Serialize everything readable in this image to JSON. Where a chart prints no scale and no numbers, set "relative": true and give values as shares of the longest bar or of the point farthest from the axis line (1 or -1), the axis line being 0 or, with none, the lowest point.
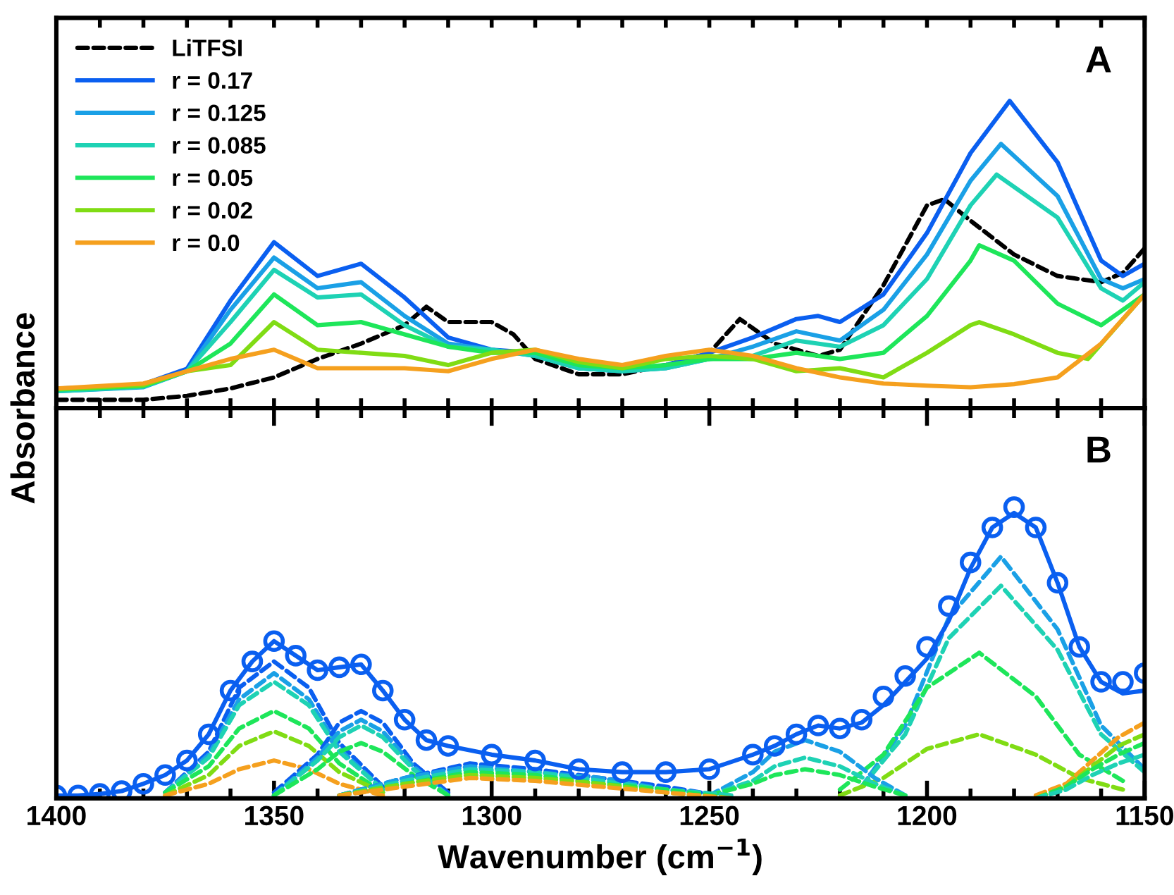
{
  "chart_data": [
    {
      "type": "line",
      "relative": true,
      "xlim": [
        1400,
        1150
      ],
      "xticks": [
        {
          "value": 1400,
          "label": null
        },
        {
          "value": 1390,
          "label": null
        },
        {
          "value": 1380,
          "label": null
        },
        {
          "value": 1370,
          "label": null
        },
        {
          "value": 1360,
          "label": null
        },
        {
          "value": 1350,
          "label": null
        },
        {
          "value": 1340,
          "label": null
        },
        {
          "value": 1330,
          "label": null
        },
        {
          "value": 1320,
          "label": null
        },
        {
          "value": 1310,
          "label": null
        },
        {
          "value": 1300,
          "label": null
        },
        {
          "value": 1290,
          "label": null
        },
        {
          "value": 1280,
          "label": null
        },
        {
          "value": 1270,
          "label": null
        },
        {
          "value": 1260,
          "label": null
        },
        {
          "value": 1250,
          "label": null
        },
        {
          "value": 1240,
          "label": null
        },
        {
          "value": 1230,
          "label": null
        },
        {
          "value": 1220,
          "label": null
        },
        {
          "value": 1210,
          "label": null
        },
        {
          "value": 1200,
          "label": null
        },
        {
          "value": 1190,
          "label": null
        },
        {
          "value": 1180,
          "label": null
        },
        {
          "value": 1170,
          "label": null
        },
        {
          "value": 1160,
          "label": null
        },
        {
          "value": 1150,
          "label": null
        }
      ],
      "tick_labels": false,
      "legend": "top left",
      "grid": false,
      "ylabel": "Absorbance",
      "annotations": [
        "A"
      ],
      "series": [
        {
          "name": "LiTFSI",
          "color": "#000000",
          "line_style": "dashed",
          "x": [
            1400,
            1380,
            1370,
            1360,
            1350,
            1340,
            1330,
            1320,
            1315,
            1310,
            1300,
            1295,
            1290,
            1280,
            1270,
            1260,
            1250,
            1243,
            1235,
            1225,
            1220,
            1210,
            1200,
            1196,
            1190,
            1180,
            1170,
            1160,
            1155,
            1150
          ],
          "values": [
            0.027,
            0.027,
            0.04,
            0.064,
            0.1,
            0.16,
            0.21,
            0.27,
            0.33,
            0.28,
            0.28,
            0.24,
            0.16,
            0.11,
            0.11,
            0.14,
            0.18,
            0.29,
            0.21,
            0.17,
            0.19,
            0.4,
            0.66,
            0.68,
            0.61,
            0.5,
            0.43,
            0.41,
            0.44,
            0.52
          ]
        },
        {
          "name": "r = 0.17",
          "color": "#0a5ff0",
          "line_style": "solid",
          "x": [
            1400,
            1390,
            1380,
            1370,
            1360,
            1350,
            1340,
            1330,
            1320,
            1310,
            1300,
            1290,
            1280,
            1270,
            1260,
            1250,
            1240,
            1230,
            1225,
            1220,
            1210,
            1200,
            1190,
            1181,
            1170,
            1160,
            1155,
            1150
          ],
          "values": [
            0.064,
            0.068,
            0.078,
            0.128,
            0.35,
            0.54,
            0.43,
            0.47,
            0.36,
            0.23,
            0.19,
            0.18,
            0.13,
            0.12,
            0.14,
            0.18,
            0.23,
            0.29,
            0.3,
            0.28,
            0.37,
            0.57,
            0.83,
            1.0,
            0.8,
            0.48,
            0.43,
            0.47
          ]
        },
        {
          "name": "r = 0.125",
          "color": "#1aa0e6",
          "line_style": "solid",
          "x": [
            1400,
            1380,
            1370,
            1360,
            1350,
            1340,
            1330,
            1320,
            1310,
            1300,
            1290,
            1280,
            1270,
            1260,
            1250,
            1240,
            1230,
            1220,
            1210,
            1200,
            1190,
            1183,
            1170,
            1160,
            1155,
            1150
          ],
          "values": [
            0.055,
            0.068,
            0.12,
            0.32,
            0.49,
            0.39,
            0.41,
            0.3,
            0.21,
            0.19,
            0.17,
            0.13,
            0.12,
            0.13,
            0.16,
            0.2,
            0.25,
            0.22,
            0.32,
            0.5,
            0.74,
            0.86,
            0.69,
            0.42,
            0.39,
            0.42
          ]
        },
        {
          "name": "r = 0.085",
          "color": "#1ed2b4",
          "line_style": "solid",
          "x": [
            1400,
            1380,
            1370,
            1360,
            1350,
            1340,
            1330,
            1320,
            1310,
            1300,
            1290,
            1280,
            1270,
            1260,
            1250,
            1240,
            1230,
            1220,
            1210,
            1200,
            1190,
            1184,
            1170,
            1160,
            1155,
            1150
          ],
          "values": [
            0.055,
            0.07,
            0.12,
            0.28,
            0.45,
            0.36,
            0.37,
            0.27,
            0.2,
            0.19,
            0.17,
            0.13,
            0.12,
            0.13,
            0.16,
            0.17,
            0.22,
            0.2,
            0.27,
            0.42,
            0.66,
            0.76,
            0.62,
            0.39,
            0.35,
            0.41
          ]
        },
        {
          "name": "r = 0.05",
          "color": "#1ee65a",
          "line_style": "solid",
          "x": [
            1400,
            1380,
            1370,
            1360,
            1350,
            1340,
            1330,
            1320,
            1310,
            1300,
            1290,
            1280,
            1270,
            1260,
            1250,
            1240,
            1230,
            1220,
            1210,
            1200,
            1190,
            1188,
            1180,
            1170,
            1160,
            1150
          ],
          "values": [
            0.06,
            0.072,
            0.12,
            0.21,
            0.37,
            0.27,
            0.28,
            0.24,
            0.2,
            0.18,
            0.18,
            0.14,
            0.13,
            0.14,
            0.16,
            0.16,
            0.18,
            0.16,
            0.18,
            0.3,
            0.48,
            0.53,
            0.48,
            0.34,
            0.27,
            0.37
          ]
        },
        {
          "name": "r = 0.02",
          "color": "#80dc14",
          "line_style": "solid",
          "x": [
            1400,
            1380,
            1370,
            1360,
            1350,
            1340,
            1330,
            1320,
            1310,
            1300,
            1290,
            1280,
            1270,
            1260,
            1250,
            1240,
            1230,
            1220,
            1210,
            1200,
            1190,
            1188,
            1180,
            1170,
            1163,
            1150
          ],
          "values": [
            0.062,
            0.075,
            0.12,
            0.14,
            0.28,
            0.19,
            0.18,
            0.17,
            0.14,
            0.18,
            0.19,
            0.15,
            0.13,
            0.16,
            0.17,
            0.16,
            0.12,
            0.13,
            0.1,
            0.18,
            0.27,
            0.28,
            0.24,
            0.18,
            0.16,
            0.37
          ]
        },
        {
          "name": "r = 0.0",
          "color": "#f5a01e",
          "line_style": "solid",
          "x": [
            1400,
            1380,
            1370,
            1360,
            1350,
            1340,
            1330,
            1320,
            1310,
            1300,
            1290,
            1280,
            1270,
            1260,
            1250,
            1240,
            1230,
            1220,
            1210,
            1200,
            1190,
            1180,
            1170,
            1160,
            1150
          ],
          "values": [
            0.064,
            0.08,
            0.12,
            0.16,
            0.19,
            0.13,
            0.13,
            0.13,
            0.12,
            0.16,
            0.19,
            0.16,
            0.14,
            0.17,
            0.19,
            0.17,
            0.13,
            0.1,
            0.08,
            0.073,
            0.068,
            0.078,
            0.1,
            0.21,
            0.37
          ]
        }
      ]
    },
    {
      "type": "line",
      "relative": true,
      "xlim": [
        1400,
        1150
      ],
      "xticks": [
        1400,
        {
          "value": 1390,
          "label": null
        },
        {
          "value": 1380,
          "label": null
        },
        {
          "value": 1370,
          "label": null
        },
        {
          "value": 1360,
          "label": null
        },
        1350,
        {
          "value": 1340,
          "label": null
        },
        {
          "value": 1330,
          "label": null
        },
        {
          "value": 1320,
          "label": null
        },
        {
          "value": 1310,
          "label": null
        },
        1300,
        {
          "value": 1290,
          "label": null
        },
        {
          "value": 1280,
          "label": null
        },
        {
          "value": 1270,
          "label": null
        },
        {
          "value": 1260,
          "label": null
        },
        1250,
        {
          "value": 1240,
          "label": null
        },
        {
          "value": 1230,
          "label": null
        },
        {
          "value": 1220,
          "label": null
        },
        {
          "value": 1210,
          "label": null
        },
        1200,
        {
          "value": 1190,
          "label": null
        },
        {
          "value": 1180,
          "label": null
        },
        {
          "value": 1170,
          "label": null
        },
        {
          "value": 1160,
          "label": null
        },
        1150
      ],
      "tick_labels": "x",
      "grid": false,
      "xlabel": "Wavenumber (cm$^{−1}$)",
      "annotations": [
        "B"
      ],
      "series": [
        {
          "color": "#1aa0e6",
          "line_style": "dashed",
          "x": [
            1215,
            1205,
            1195,
            1183,
            1170,
            1160,
            1150
          ],
          "values": [
            0.04,
            0.25,
            0.62,
            0.83,
            0.58,
            0.25,
            0.1
          ]
        },
        {
          "color": "#1ed2b4",
          "line_style": "dashed",
          "x": [
            1215,
            1205,
            1195,
            1183,
            1170,
            1160,
            1150
          ],
          "values": [
            0.04,
            0.22,
            0.55,
            0.73,
            0.51,
            0.22,
            0.09
          ]
        },
        {
          "color": "#1ee65a",
          "line_style": "dashed",
          "x": [
            1220,
            1210,
            1200,
            1188,
            1175,
            1165,
            1155
          ],
          "values": [
            0.03,
            0.15,
            0.38,
            0.5,
            0.35,
            0.15,
            0.06
          ]
        },
        {
          "color": "#80dc14",
          "line_style": "dashed",
          "x": [
            1220,
            1210,
            1200,
            1188,
            1175,
            1165,
            1155
          ],
          "values": [
            0.01,
            0.07,
            0.17,
            0.22,
            0.15,
            0.07,
            0.03
          ]
        },
        {
          "color": "#0a5ff0",
          "line_style": "dashed",
          "x": [
            1375,
            1365,
            1358,
            1350,
            1342,
            1335,
            1325
          ],
          "values": [
            0.02,
            0.16,
            0.38,
            0.47,
            0.38,
            0.19,
            0.04
          ]
        },
        {
          "color": "#1aa0e6",
          "line_style": "dashed",
          "x": [
            1375,
            1365,
            1358,
            1350,
            1342,
            1335,
            1325
          ],
          "values": [
            0.02,
            0.15,
            0.34,
            0.43,
            0.34,
            0.17,
            0.03
          ]
        },
        {
          "color": "#1ed2b4",
          "line_style": "dashed",
          "x": [
            1375,
            1365,
            1358,
            1350,
            1342,
            1335,
            1325
          ],
          "values": [
            0.02,
            0.14,
            0.32,
            0.4,
            0.32,
            0.16,
            0.03
          ]
        },
        {
          "color": "#1ee65a",
          "line_style": "dashed",
          "x": [
            1375,
            1365,
            1358,
            1350,
            1342,
            1335,
            1325
          ],
          "values": [
            0.02,
            0.11,
            0.24,
            0.3,
            0.24,
            0.12,
            0.02
          ]
        },
        {
          "color": "#80dc14",
          "line_style": "dashed",
          "x": [
            1375,
            1365,
            1358,
            1350,
            1342,
            1335,
            1325
          ],
          "values": [
            0.01,
            0.08,
            0.18,
            0.23,
            0.18,
            0.09,
            0.02
          ]
        },
        {
          "color": "#f5a01e",
          "line_style": "dashed",
          "x": [
            1375,
            1365,
            1358,
            1350,
            1342,
            1335,
            1325
          ],
          "values": [
            0.01,
            0.05,
            0.1,
            0.13,
            0.1,
            0.05,
            0.01
          ]
        },
        {
          "color": "#0a5ff0",
          "line_style": "dashed",
          "x": [
            1350,
            1340,
            1335,
            1330,
            1325,
            1318,
            1310
          ],
          "values": [
            0.02,
            0.15,
            0.26,
            0.3,
            0.26,
            0.12,
            0.02
          ]
        },
        {
          "color": "#1aa0e6",
          "line_style": "dashed",
          "x": [
            1350,
            1340,
            1335,
            1330,
            1325,
            1318,
            1310
          ],
          "values": [
            0.01,
            0.14,
            0.23,
            0.27,
            0.23,
            0.11,
            0.01
          ]
        },
        {
          "color": "#1ed2b4",
          "line_style": "dashed",
          "x": [
            1350,
            1340,
            1335,
            1330,
            1325,
            1318,
            1310
          ],
          "values": [
            0.01,
            0.13,
            0.21,
            0.25,
            0.21,
            0.1,
            0.01
          ]
        },
        {
          "color": "#1ee65a",
          "line_style": "dashed",
          "x": [
            1350,
            1340,
            1335,
            1330,
            1325,
            1318,
            1310
          ],
          "values": [
            0.01,
            0.1,
            0.16,
            0.19,
            0.16,
            0.08,
            0.01
          ]
        },
        {
          "color": "#1aa0e6",
          "line_style": "dashed",
          "x": [
            1250,
            1240,
            1235,
            1228,
            1220,
            1212,
            1205
          ],
          "values": [
            0.01,
            0.09,
            0.16,
            0.2,
            0.16,
            0.07,
            0.01
          ]
        },
        {
          "color": "#1ed2b4",
          "line_style": "dashed",
          "x": [
            1250,
            1240,
            1235,
            1228,
            1220,
            1212,
            1205
          ],
          "values": [
            0.01,
            0.06,
            0.11,
            0.14,
            0.11,
            0.05,
            0.01
          ]
        },
        {
          "color": "#1ee65a",
          "line_style": "dashed",
          "x": [
            1250,
            1240,
            1235,
            1228,
            1220,
            1212,
            1205
          ],
          "values": [
            0.01,
            0.05,
            0.08,
            0.1,
            0.08,
            0.04,
            0.01
          ]
        },
        {
          "color": "#0a5ff0",
          "line_style": "dashed",
          "x": [
            1335,
            1320,
            1305,
            1290,
            1275,
            1260,
            1252
          ],
          "values": [
            0.01,
            0.07,
            0.12,
            0.1,
            0.07,
            0.04,
            0.02
          ]
        },
        {
          "color": "#1aa0e6",
          "line_style": "dashed",
          "x": [
            1335,
            1320,
            1305,
            1290,
            1275,
            1260,
            1245
          ],
          "values": [
            0.01,
            0.07,
            0.11,
            0.09,
            0.07,
            0.03,
            0.01
          ]
        },
        {
          "color": "#1ed2b4",
          "line_style": "dashed",
          "x": [
            1335,
            1320,
            1305,
            1290,
            1275,
            1260,
            1245
          ],
          "values": [
            0.01,
            0.06,
            0.1,
            0.09,
            0.06,
            0.03,
            0.01
          ]
        },
        {
          "color": "#1ee65a",
          "line_style": "dashed",
          "x": [
            1335,
            1320,
            1305,
            1290,
            1275,
            1260,
            1245
          ],
          "values": [
            0.01,
            0.05,
            0.09,
            0.08,
            0.05,
            0.03,
            0.0
          ]
        },
        {
          "color": "#80dc14",
          "line_style": "dashed",
          "x": [
            1335,
            1320,
            1305,
            1290,
            1275,
            1260,
            1245
          ],
          "values": [
            0.01,
            0.05,
            0.08,
            0.07,
            0.05,
            0.02,
            0.0
          ]
        },
        {
          "color": "#f5a01e",
          "line_style": "dashed",
          "x": [
            1335,
            1320,
            1305,
            1290,
            1275,
            1260,
            1245
          ],
          "values": [
            0.01,
            0.04,
            0.07,
            0.06,
            0.04,
            0.02,
            0.0
          ]
        },
        {
          "color": "#f5a01e",
          "line_style": "dashed",
          "x": [
            1175,
            1168,
            1162,
            1156,
            1150
          ],
          "values": [
            0.01,
            0.05,
            0.13,
            0.21,
            0.26
          ]
        },
        {
          "color": "#80dc14",
          "line_style": "dashed",
          "x": [
            1175,
            1168,
            1162,
            1156,
            1150
          ],
          "values": [
            0.0,
            0.04,
            0.11,
            0.18,
            0.22
          ]
        },
        {
          "color": "#1ee65a",
          "line_style": "dashed",
          "x": [
            1175,
            1168,
            1162,
            1156,
            1150
          ],
          "values": [
            0.0,
            0.04,
            0.1,
            0.15,
            0.19
          ]
        },
        {
          "color": "#1ed2b4",
          "line_style": "dashed",
          "x": [
            1175,
            1168,
            1162,
            1156,
            1150
          ],
          "values": [
            0.0,
            0.03,
            0.08,
            0.12,
            0.15
          ]
        },
        {
          "color": "#0a5ff0",
          "line_style": "solid",
          "x": [
            1400,
            1395,
            1390,
            1385,
            1380,
            1375,
            1370,
            1365,
            1360,
            1355,
            1350,
            1345,
            1340,
            1335,
            1330,
            1325,
            1320,
            1315,
            1310,
            1300,
            1290,
            1280,
            1270,
            1260,
            1250,
            1240,
            1235,
            1230,
            1225,
            1220,
            1215,
            1210,
            1205,
            1200,
            1195,
            1190,
            1185,
            1180,
            1175,
            1170,
            1165,
            1160,
            1155,
            1150
          ],
          "values": [
            0.01,
            0.01,
            0.015,
            0.025,
            0.05,
            0.08,
            0.13,
            0.22,
            0.37,
            0.47,
            0.54,
            0.49,
            0.44,
            0.45,
            0.46,
            0.37,
            0.27,
            0.2,
            0.18,
            0.15,
            0.13,
            0.1,
            0.09,
            0.09,
            0.1,
            0.15,
            0.18,
            0.22,
            0.25,
            0.24,
            0.26,
            0.32,
            0.4,
            0.48,
            0.61,
            0.79,
            0.93,
            0.98,
            0.93,
            0.74,
            0.52,
            0.4,
            0.36,
            0.37
          ]
        },
        {
          "type": "scatter",
          "marker": "circle",
          "color": "#0a5ff0",
          "x": [
            1400,
            1395,
            1390,
            1385,
            1380,
            1375,
            1370,
            1365,
            1360,
            1355,
            1350,
            1345,
            1340,
            1335,
            1330,
            1325,
            1320,
            1315,
            1310,
            1300,
            1290,
            1280,
            1270,
            1260,
            1250,
            1240,
            1235,
            1230,
            1225,
            1220,
            1215,
            1210,
            1205,
            1200,
            1195,
            1190,
            1185,
            1180,
            1175,
            1170,
            1165,
            1160,
            1155,
            1150
          ],
          "values": [
            0.01,
            0.01,
            0.015,
            0.025,
            0.05,
            0.08,
            0.13,
            0.22,
            0.37,
            0.47,
            0.54,
            0.49,
            0.44,
            0.45,
            0.46,
            0.37,
            0.27,
            0.2,
            0.18,
            0.15,
            0.13,
            0.1,
            0.09,
            0.09,
            0.1,
            0.15,
            0.18,
            0.22,
            0.25,
            0.24,
            0.27,
            0.35,
            0.42,
            0.52,
            0.66,
            0.81,
            0.93,
            1.0,
            0.93,
            0.74,
            0.52,
            0.4,
            0.4,
            0.43
          ]
        }
      ]
    }
  ]
}
